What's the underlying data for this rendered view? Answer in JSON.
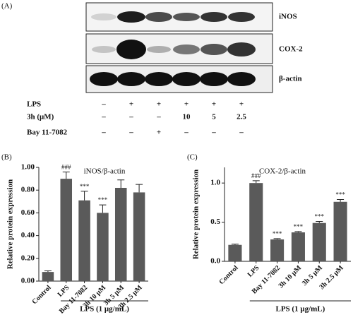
{
  "panel_a": {
    "label": "(A)",
    "bands": [
      "iNOS",
      "COX-2",
      "β-actin"
    ],
    "treatments": [
      {
        "name": "LPS",
        "values": [
          "–",
          "+",
          "+",
          "+",
          "+",
          "+"
        ]
      },
      {
        "name": "3h (μM)",
        "values": [
          "–",
          "–",
          "–",
          "10",
          "5",
          "2.5"
        ]
      },
      {
        "name": "Bay 11-7082",
        "values": [
          "–",
          "–",
          "+",
          "–",
          "–",
          "–"
        ]
      }
    ]
  },
  "chart_data": [
    {
      "type": "bar",
      "panel_label": "(B)",
      "title": "iNOS/β-actin",
      "y_label": "Relative protein expression",
      "x_label": "LPS (1 μg/mL)",
      "categories": [
        "Control",
        "LPS",
        "Bay 11-7082",
        "3h 10 μM",
        "3h 5 μM",
        "3h 2.5 μM"
      ],
      "values": [
        0.08,
        0.9,
        0.71,
        0.6,
        0.82,
        0.78
      ],
      "errors": [
        0.01,
        0.06,
        0.08,
        0.07,
        0.07,
        0.07
      ],
      "annotations": [
        null,
        "###",
        "***",
        "***",
        null,
        null
      ],
      "color": "#5a5a5a",
      "ylim": [
        0,
        1.0
      ],
      "yticks": [
        {
          "value": 0,
          "label": "0.00"
        },
        {
          "value": 0.2,
          "label": "0.20"
        },
        {
          "value": 0.4,
          "label": "0.40"
        },
        {
          "value": 0.6,
          "label": "0.60"
        },
        {
          "value": 0.8,
          "label": "0.80"
        },
        {
          "value": 1.0,
          "label": "1.00"
        }
      ]
    },
    {
      "type": "bar",
      "panel_label": "(C)",
      "title": "COX-2/β-actin",
      "y_label": "Relative protein expression",
      "x_label": "LPS (1 μg/mL)",
      "categories": [
        "Control",
        "LPS",
        "Bay 11-7082",
        "3h 10 μM",
        "3h 5 μM",
        "3h 2.5 μM"
      ],
      "values": [
        0.21,
        1.0,
        0.28,
        0.37,
        0.49,
        0.76
      ],
      "errors": [
        0.01,
        0.03,
        0.01,
        0.01,
        0.02,
        0.03
      ],
      "annotations": [
        null,
        "###",
        "***",
        "***",
        "***",
        "***"
      ],
      "color": "#5a5a5a",
      "ylim": [
        0,
        1.2
      ],
      "yticks": [
        {
          "value": 0,
          "label": "0.0"
        },
        {
          "value": 0.5,
          "label": "0.5"
        },
        {
          "value": 1.0,
          "label": "1.0"
        }
      ]
    }
  ]
}
